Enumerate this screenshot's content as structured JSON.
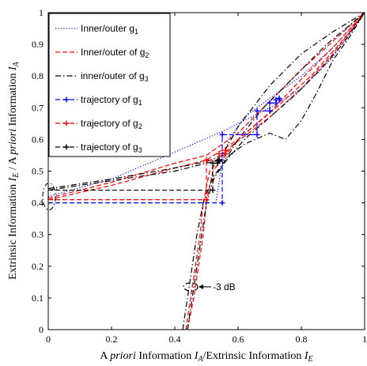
{
  "chart_data": {
    "type": "line",
    "xlabel": {
      "prefix": "A ",
      "italic_word": "priori",
      "mid": " Information ",
      "sym1": "I",
      "sub1": "A",
      "sep": "/Extrinsic Information ",
      "sym2": "I",
      "sub2": "E"
    },
    "ylabel": {
      "prefix": "Extrinsic Information ",
      "sym1": "I",
      "sub1": "E",
      "mid": " / A ",
      "italic_word": "priori",
      "after": " Information ",
      "sym2": "I",
      "sub2": "A"
    },
    "xlim": [
      0,
      1
    ],
    "ylim": [
      0,
      1
    ],
    "x_ticks": [
      "0",
      "0.2",
      "0.4",
      "0.6",
      "0.8",
      "1"
    ],
    "y_ticks": [
      "0",
      "0.1",
      "0.2",
      "0.3",
      "0.4",
      "0.5",
      "0.6",
      "0.7",
      "0.8",
      "0.9",
      "1"
    ],
    "legend": {
      "placement": "top-left",
      "entries": [
        {
          "base": "Inner/outer g",
          "sub": "1",
          "color": "#0000ff",
          "style": "dotted"
        },
        {
          "base": "Inner/outer of g",
          "sub": "2",
          "color": "#ff0000",
          "style": "dashed"
        },
        {
          "base": "inner/outer of g",
          "sub": "3",
          "color": "#000000",
          "style": "dashdot"
        },
        {
          "base": "trajectory of g",
          "sub": "1",
          "color": "#0000ff",
          "style": "dashed-plus"
        },
        {
          "base": "trajectory of g",
          "sub": "2",
          "color": "#ff0000",
          "style": "dashed-plus"
        },
        {
          "base": "trajectory of g",
          "sub": "3",
          "color": "#000000",
          "style": "dashed-plus"
        }
      ]
    },
    "annotation": {
      "text": "-3 dB",
      "x": 0.45,
      "y": 0.135
    },
    "series": [
      {
        "color": "#0000ff",
        "style": "dotted",
        "values": [
          [
            0,
            0.42
          ],
          [
            0.2,
            0.475
          ],
          [
            0.4,
            0.56
          ],
          [
            0.55,
            0.625
          ],
          [
            0.7,
            0.7
          ],
          [
            0.8,
            0.76
          ],
          [
            0.9,
            0.86
          ],
          [
            1,
            1
          ]
        ]
      },
      {
        "color": "#0000ff",
        "style": "dotted",
        "values": [
          [
            0.53,
            0.4
          ],
          [
            0.545,
            0.5
          ],
          [
            0.57,
            0.6
          ],
          [
            0.62,
            0.67
          ],
          [
            0.7,
            0.73
          ],
          [
            0.8,
            0.8
          ],
          [
            0.9,
            0.89
          ],
          [
            1,
            1
          ]
        ]
      },
      {
        "color": "#ff0000",
        "style": "dashed",
        "values": [
          [
            0,
            0.415
          ],
          [
            0.2,
            0.465
          ],
          [
            0.4,
            0.525
          ],
          [
            0.5,
            0.55
          ],
          [
            0.6,
            0.62
          ],
          [
            0.7,
            0.72
          ],
          [
            0.8,
            0.82
          ],
          [
            0.9,
            0.91
          ],
          [
            1,
            1
          ]
        ]
      },
      {
        "color": "#ff0000",
        "style": "dashed",
        "values": [
          [
            0,
            0.41
          ],
          [
            0.2,
            0.455
          ],
          [
            0.4,
            0.51
          ],
          [
            0.5,
            0.535
          ],
          [
            0.6,
            0.6
          ],
          [
            0.7,
            0.685
          ],
          [
            0.8,
            0.79
          ],
          [
            0.9,
            0.89
          ],
          [
            1,
            1
          ]
        ]
      },
      {
        "color": "#ff0000",
        "style": "dashed",
        "values": [
          [
            0.44,
            0
          ],
          [
            0.46,
            0.1
          ],
          [
            0.475,
            0.2
          ],
          [
            0.49,
            0.3
          ],
          [
            0.5,
            0.4
          ],
          [
            0.52,
            0.5
          ],
          [
            0.6,
            0.6
          ],
          [
            0.72,
            0.7
          ],
          [
            0.83,
            0.8
          ],
          [
            0.92,
            0.9
          ],
          [
            1,
            1
          ]
        ]
      },
      {
        "color": "#ff0000",
        "style": "dashed",
        "values": [
          [
            0.435,
            0
          ],
          [
            0.45,
            0.1
          ],
          [
            0.465,
            0.2
          ],
          [
            0.48,
            0.3
          ],
          [
            0.49,
            0.4
          ],
          [
            0.51,
            0.5
          ],
          [
            0.58,
            0.58
          ],
          [
            0.7,
            0.67
          ],
          [
            0.8,
            0.76
          ],
          [
            0.9,
            0.87
          ],
          [
            1,
            1
          ]
        ]
      },
      {
        "color": "#000000",
        "style": "dashdot",
        "values": [
          [
            0,
            0.445
          ],
          [
            0.2,
            0.475
          ],
          [
            0.4,
            0.51
          ],
          [
            0.5,
            0.53
          ],
          [
            0.55,
            0.55
          ],
          [
            0.6,
            0.64
          ],
          [
            0.7,
            0.77
          ],
          [
            0.8,
            0.87
          ],
          [
            0.9,
            0.94
          ],
          [
            1,
            1
          ]
        ]
      },
      {
        "color": "#000000",
        "style": "dashdot",
        "values": [
          [
            0,
            0.44
          ],
          [
            0.2,
            0.47
          ],
          [
            0.4,
            0.5
          ],
          [
            0.5,
            0.525
          ],
          [
            0.56,
            0.54
          ],
          [
            0.62,
            0.585
          ],
          [
            0.7,
            0.62
          ],
          [
            0.75,
            0.6
          ],
          [
            0.8,
            0.66
          ],
          [
            0.85,
            0.75
          ],
          [
            0.9,
            0.85
          ],
          [
            0.95,
            0.92
          ],
          [
            1,
            1
          ]
        ]
      },
      {
        "color": "#000000",
        "style": "dashdot",
        "values": [
          [
            0.425,
            0
          ],
          [
            0.44,
            0.1
          ],
          [
            0.455,
            0.2
          ],
          [
            0.47,
            0.3
          ],
          [
            0.49,
            0.4
          ],
          [
            0.52,
            0.48
          ],
          [
            0.55,
            0.52
          ],
          [
            0.6,
            0.6
          ],
          [
            0.68,
            0.7
          ],
          [
            0.78,
            0.8
          ],
          [
            0.88,
            0.9
          ],
          [
            1,
            1
          ]
        ]
      },
      {
        "color": "#000000",
        "style": "dashdot",
        "values": [
          [
            0.44,
            0
          ],
          [
            0.455,
            0.1
          ],
          [
            0.47,
            0.2
          ],
          [
            0.485,
            0.3
          ],
          [
            0.5,
            0.4
          ],
          [
            0.525,
            0.48
          ],
          [
            0.56,
            0.53
          ],
          [
            0.62,
            0.6
          ],
          [
            0.7,
            0.67
          ],
          [
            0.78,
            0.74
          ],
          [
            0.86,
            0.82
          ],
          [
            0.93,
            0.9
          ],
          [
            1,
            1
          ]
        ]
      },
      {
        "color": "#0000ff",
        "style": "dashed",
        "values": [
          [
            0,
            0.4
          ],
          [
            0.55,
            0.4
          ],
          [
            0.55,
            0.615
          ],
          [
            0.66,
            0.615
          ],
          [
            0.66,
            0.69
          ],
          [
            0.7,
            0.69
          ],
          [
            0.7,
            0.715
          ],
          [
            0.72,
            0.715
          ],
          [
            0.72,
            0.725
          ],
          [
            0.73,
            0.725
          ],
          [
            0.73,
            0.73
          ]
        ]
      },
      {
        "color": "#0000ff",
        "style": "markers",
        "values": [
          [
            0.55,
            0.4
          ],
          [
            0.55,
            0.615
          ],
          [
            0.66,
            0.615
          ],
          [
            0.66,
            0.69
          ],
          [
            0.7,
            0.69
          ],
          [
            0.7,
            0.715
          ],
          [
            0.72,
            0.715
          ],
          [
            0.72,
            0.725
          ],
          [
            0.73,
            0.725
          ],
          [
            0.73,
            0.73
          ]
        ]
      },
      {
        "color": "#ff0000",
        "style": "dashed",
        "values": [
          [
            0,
            0.41
          ],
          [
            0.5,
            0.41
          ],
          [
            0.5,
            0.535
          ],
          [
            0.54,
            0.535
          ],
          [
            0.54,
            0.555
          ],
          [
            0.56,
            0.555
          ],
          [
            0.56,
            0.565
          ]
        ]
      },
      {
        "color": "#ff0000",
        "style": "markers",
        "values": [
          [
            0.5,
            0.41
          ],
          [
            0.5,
            0.535
          ],
          [
            0.54,
            0.535
          ],
          [
            0.54,
            0.555
          ],
          [
            0.56,
            0.555
          ],
          [
            0.56,
            0.565
          ]
        ]
      },
      {
        "color": "#000000",
        "style": "dashed",
        "values": [
          [
            0,
            0.44
          ],
          [
            0.52,
            0.44
          ],
          [
            0.52,
            0.525
          ],
          [
            0.535,
            0.525
          ],
          [
            0.535,
            0.532
          ],
          [
            0.54,
            0.532
          ],
          [
            0.54,
            0.535
          ]
        ]
      },
      {
        "color": "#000000",
        "style": "markers",
        "values": [
          [
            0.52,
            0.44
          ],
          [
            0.52,
            0.525
          ],
          [
            0.535,
            0.525
          ],
          [
            0.535,
            0.532
          ],
          [
            0.54,
            0.532
          ],
          [
            0.54,
            0.535
          ]
        ]
      }
    ]
  }
}
